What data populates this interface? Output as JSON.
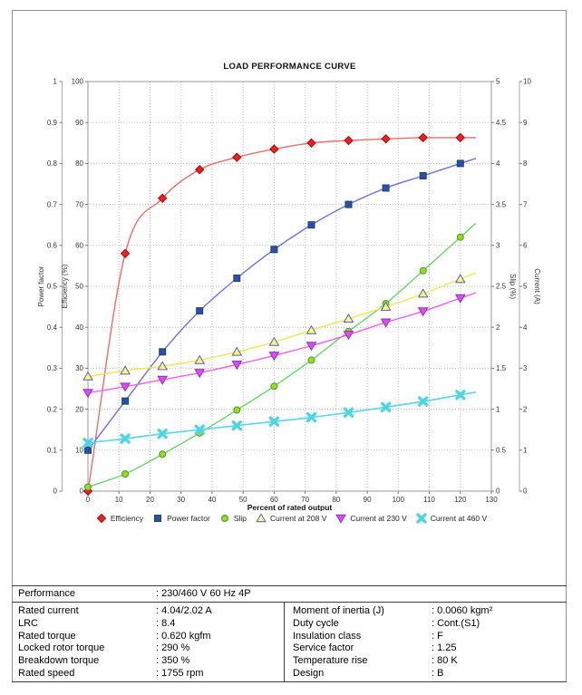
{
  "chart_data": {
    "type": "line",
    "title": "LOAD PERFORMANCE CURVE",
    "xlabel": "Percent of rated output",
    "x_axis": {
      "min": 0,
      "max": 130,
      "step": 10
    },
    "axes": [
      {
        "id": "power_factor",
        "label": "Power factor",
        "min": 0,
        "max": 1,
        "step": 0.1
      },
      {
        "id": "efficiency",
        "label": "Efficiency (%)",
        "min": 0,
        "max": 100,
        "step": 10
      },
      {
        "id": "slip",
        "label": "Slip (%)",
        "min": 0,
        "max": 5,
        "step": 0.5
      },
      {
        "id": "current",
        "label": "Current (A)",
        "min": 0,
        "max": 10,
        "step": 1
      }
    ],
    "grid": true,
    "legend_position": "bottom",
    "x": [
      0,
      12,
      24,
      36,
      48,
      60,
      72,
      84,
      96,
      108,
      120
    ],
    "series": [
      {
        "name": "Efficiency",
        "axis": "efficiency",
        "marker": "diamond",
        "line_color": "#f06a6a",
        "marker_fill": "#e62222",
        "marker_stroke": "#b30000",
        "values": [
          0,
          58,
          71.5,
          78.5,
          81.5,
          83.5,
          85,
          85.6,
          86,
          86.3,
          86.3
        ]
      },
      {
        "name": "Power factor",
        "axis": "power_factor",
        "marker": "square",
        "line_color": "#6d6de2",
        "marker_fill": "#2b4ac8",
        "marker_stroke": "#1c5023",
        "values": [
          0.1,
          0.22,
          0.34,
          0.44,
          0.52,
          0.59,
          0.65,
          0.7,
          0.74,
          0.77,
          0.8
        ]
      },
      {
        "name": "Slip",
        "axis": "slip",
        "marker": "circle",
        "line_color": "#63d963",
        "marker_fill": "#a9d417",
        "marker_stroke": "#35a135",
        "values": [
          0.05,
          0.21,
          0.45,
          0.71,
          0.99,
          1.28,
          1.6,
          1.95,
          2.29,
          2.69,
          3.1
        ]
      },
      {
        "name": "Current at 208 V",
        "axis": "current",
        "marker": "triangle-up",
        "line_color": "#efe84e",
        "marker_fill": "#fbf96d",
        "marker_stroke": "#5a57d8",
        "values": [
          2.8,
          2.94,
          3.05,
          3.2,
          3.4,
          3.64,
          3.93,
          4.21,
          4.5,
          4.82,
          5.18
        ]
      },
      {
        "name": "Current at 230 V",
        "axis": "current",
        "marker": "triangle-down",
        "line_color": "#ef5fef",
        "marker_fill": "#dd4fe0",
        "marker_stroke": "#8c2fd0",
        "values": [
          2.4,
          2.55,
          2.72,
          2.89,
          3.09,
          3.31,
          3.55,
          3.82,
          4.12,
          4.39,
          4.71
        ]
      },
      {
        "name": "Current at 460 V",
        "axis": "current",
        "marker": "x",
        "line_color": "#59d8e6",
        "marker_fill": "#4fd4e6",
        "marker_stroke": "#4fd4e6",
        "values": [
          1.18,
          1.28,
          1.4,
          1.5,
          1.6,
          1.7,
          1.8,
          1.92,
          2.05,
          2.19,
          2.35
        ]
      }
    ]
  },
  "table": {
    "performance": {
      "label": "Performance",
      "value": ": 230/460 V 60 Hz 4P"
    },
    "left_rows": [
      {
        "label": "Rated current",
        "value": ": 4.04/2.02 A"
      },
      {
        "label": "LRC",
        "value": ": 8.4"
      },
      {
        "label": "Rated torque",
        "value": ": 0.620 kgfm"
      },
      {
        "label": "Locked rotor torque",
        "value": ": 290 %"
      },
      {
        "label": "Breakdown torque",
        "value": ": 350 %"
      },
      {
        "label": "Rated speed",
        "value": ": 1755 rpm"
      }
    ],
    "right_rows": [
      {
        "label": "Moment of inertia (J)",
        "value": ": 0.0060 kgm²"
      },
      {
        "label": "Duty cycle",
        "value": ": Cont.(S1)"
      },
      {
        "label": "Insulation class",
        "value": ": F"
      },
      {
        "label": "Service factor",
        "value": ": 1.25"
      },
      {
        "label": "Temperature rise",
        "value": ": 80 K"
      },
      {
        "label": "Design",
        "value": ": B"
      }
    ]
  }
}
